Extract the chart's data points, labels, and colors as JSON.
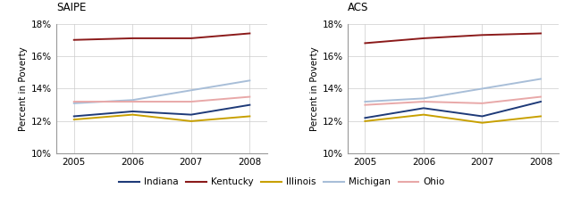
{
  "years": [
    2005,
    2006,
    2007,
    2008
  ],
  "saipe": {
    "Indiana": [
      12.3,
      12.6,
      12.4,
      13.0
    ],
    "Kentucky": [
      17.0,
      17.1,
      17.1,
      17.4
    ],
    "Illinois": [
      12.1,
      12.4,
      12.0,
      12.3
    ],
    "Michigan": [
      13.1,
      13.3,
      13.9,
      14.5
    ],
    "Ohio": [
      13.2,
      13.2,
      13.2,
      13.5
    ]
  },
  "acs": {
    "Indiana": [
      12.2,
      12.8,
      12.3,
      13.2
    ],
    "Kentucky": [
      16.8,
      17.1,
      17.3,
      17.4
    ],
    "Illinois": [
      12.0,
      12.4,
      11.9,
      12.3
    ],
    "Michigan": [
      13.2,
      13.4,
      14.0,
      14.6
    ],
    "Ohio": [
      13.0,
      13.2,
      13.1,
      13.5
    ]
  },
  "colors": {
    "Indiana": "#1e3a78",
    "Kentucky": "#8b1a1a",
    "Illinois": "#c8a000",
    "Michigan": "#a8bed8",
    "Ohio": "#e8a8a8"
  },
  "title_left": "SAIPE",
  "title_right": "ACS",
  "ylabel": "Percent in Poverty",
  "ylim": [
    10,
    18
  ],
  "yticks": [
    10,
    12,
    14,
    16,
    18
  ],
  "xlim": [
    2004.7,
    2008.3
  ],
  "legend_order": [
    "Indiana",
    "Kentucky",
    "Illinois",
    "Michigan",
    "Ohio"
  ]
}
